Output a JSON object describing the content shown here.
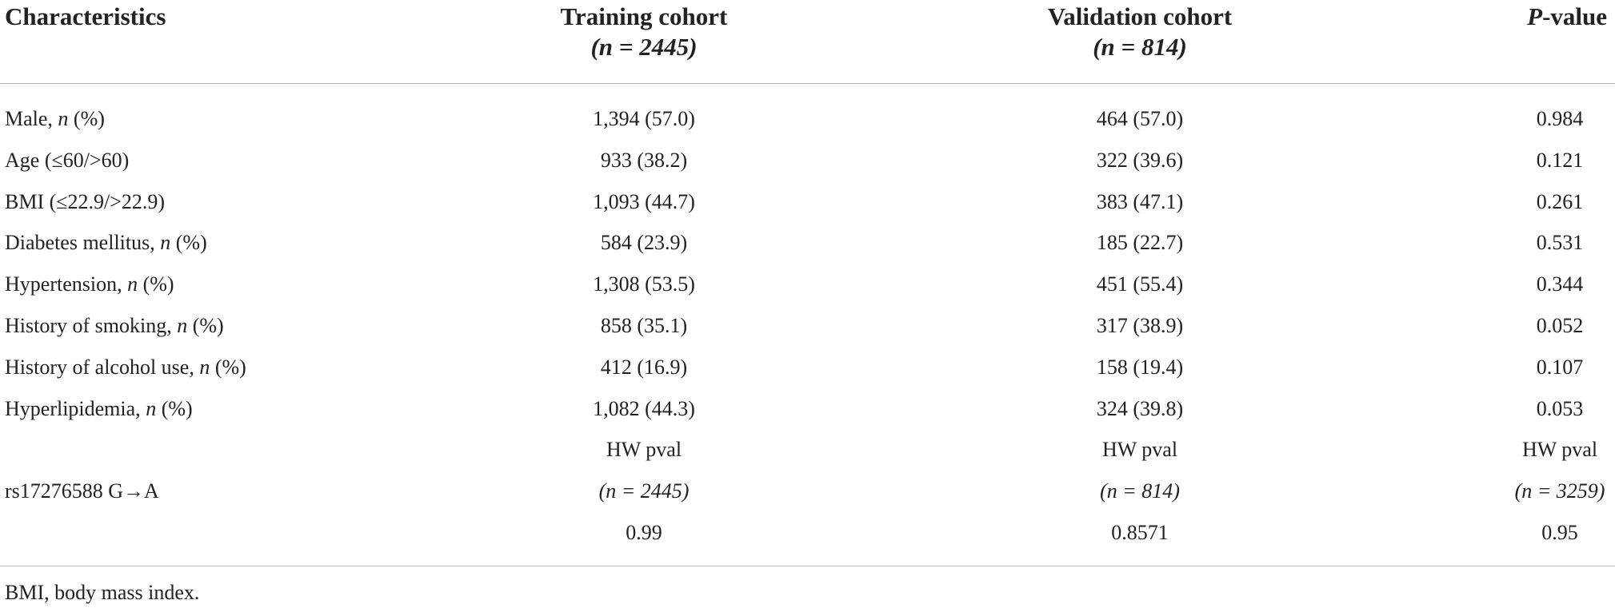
{
  "header": {
    "characteristics": "Characteristics",
    "training": [
      "Training cohort",
      "(n = 2445)"
    ],
    "validation": [
      "Validation cohort",
      "(n = 814)"
    ],
    "p_value": [
      "P",
      "-value"
    ]
  },
  "rows": [
    {
      "label": [
        "Male, ",
        "n",
        " (%)"
      ],
      "training": "1,394 (57.0)",
      "validation": "464 (57.0)",
      "p_value": "0.984"
    },
    {
      "label": [
        "Age (≤60/>60)"
      ],
      "training": "933 (38.2)",
      "validation": "322 (39.6)",
      "p_value": "0.121"
    },
    {
      "label": [
        "BMI (≤22.9/>22.9)"
      ],
      "training": "1,093 (44.7)",
      "validation": "383 (47.1)",
      "p_value": "0.261"
    },
    {
      "label": [
        "Diabetes mellitus, ",
        "n",
        " (%)"
      ],
      "training": "584 (23.9)",
      "validation": "185 (22.7)",
      "p_value": "0.531"
    },
    {
      "label": [
        "Hypertension, ",
        "n",
        " (%)"
      ],
      "training": "1,308 (53.5)",
      "validation": "451 (55.4)",
      "p_value": "0.344"
    },
    {
      "label": [
        "History of smoking, ",
        "n",
        " (%)"
      ],
      "training": "858 (35.1)",
      "validation": "317 (38.9)",
      "p_value": "0.052"
    },
    {
      "label": [
        "History of alcohol use, ",
        "n",
        " (%)"
      ],
      "training": "412 (16.9)",
      "validation": "158 (19.4)",
      "p_value": "0.107"
    },
    {
      "label": [
        "Hyperlipidemia, ",
        "n",
        " (%)"
      ],
      "training": "1,082 (44.3)",
      "validation": "324 (39.8)",
      "p_value": "0.053"
    },
    {
      "training": "HW pval",
      "validation": "HW pval",
      "p_value": "HW pval"
    },
    {
      "label": [
        "rs17276588 G→A"
      ],
      "training": "(n = 2445)",
      "validation": "(n = 814)",
      "p_value": "(n = 3259)"
    },
    {
      "training": "0.99",
      "validation": "0.8571",
      "p_value": "0.95"
    }
  ],
  "footnote": "BMI, body mass index."
}
